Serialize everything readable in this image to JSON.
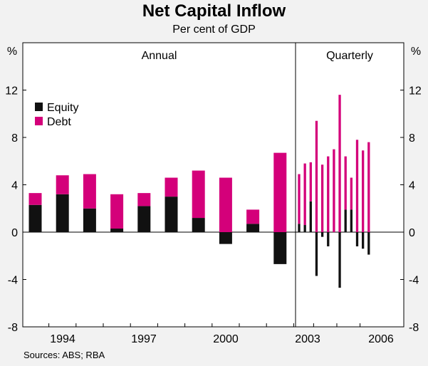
{
  "chart_data": {
    "type": "bar",
    "stacked": true,
    "title": "Net Capital Inflow",
    "subtitle": "Per cent of GDP",
    "ylabel_left": "%",
    "ylabel_right": "%",
    "ylim": [
      -8,
      16
    ],
    "yticks": [
      -8,
      -4,
      0,
      4,
      8,
      12
    ],
    "panels": [
      {
        "name": "annual",
        "label": "Annual"
      },
      {
        "name": "quarterly",
        "label": "Quarterly"
      }
    ],
    "x_tick_labels": [
      {
        "label": "1994",
        "panel": "annual",
        "after_index": 1
      },
      {
        "label": "1997",
        "panel": "annual",
        "after_index": 4
      },
      {
        "label": "2000",
        "panel": "annual",
        "after_index": 7
      },
      {
        "label": "2003",
        "panel": "quarterly",
        "after_index": 2
      },
      {
        "label": "2006",
        "panel": "quarterly",
        "after_index": 14
      }
    ],
    "legend": {
      "position": "top-left",
      "entries": [
        {
          "name": "Equity",
          "color": "#111111"
        },
        {
          "name": "Debt",
          "color": "#d4007a"
        }
      ]
    },
    "annual": {
      "equity": [
        2.3,
        3.2,
        2.0,
        0.3,
        2.2,
        3.0,
        1.2,
        -1.0,
        0.7,
        -2.7
      ],
      "debt": [
        1.0,
        1.6,
        2.9,
        2.9,
        1.1,
        1.6,
        4.0,
        4.6,
        1.2,
        6.7
      ]
    },
    "quarterly": {
      "equity": [
        0.7,
        0.6,
        2.6,
        -3.7,
        -0.4,
        -1.2,
        0.0,
        -4.7,
        1.9,
        1.9,
        -1.2,
        -1.4,
        -1.9
      ],
      "debt": [
        4.2,
        5.2,
        3.3,
        9.4,
        5.7,
        6.4,
        7.0,
        11.6,
        4.5,
        2.7,
        7.8,
        6.9,
        7.6
      ]
    },
    "colors": {
      "equity": "#111111",
      "debt": "#d4007a"
    }
  },
  "footer": {
    "sources": "Sources: ABS; RBA"
  }
}
